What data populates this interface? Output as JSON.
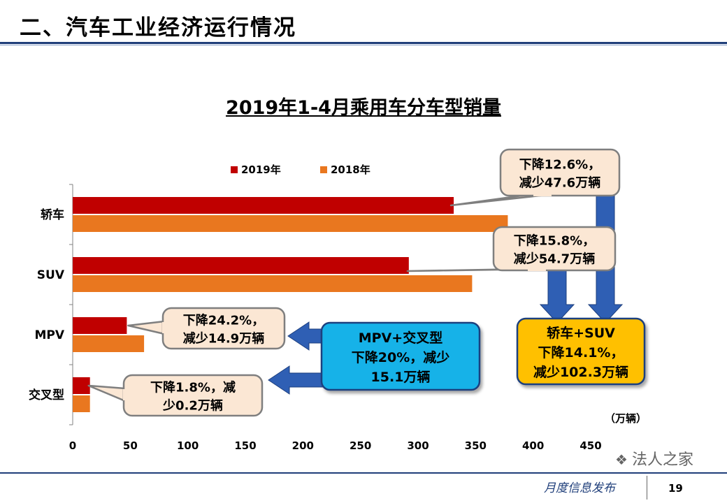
{
  "slide": {
    "title": "二、汽车工业经济运行情况",
    "footer": "月度信息发布",
    "page_number": "19",
    "watermark": "法人之家",
    "watermark_icon": "wechat-icon"
  },
  "colors": {
    "series_2019": "#c00000",
    "series_2018": "#e9771f",
    "callout_fill": "#fbe7d4",
    "callout_stroke": "#7f7f7f",
    "mpv_box_fill": "#12b2e8",
    "suv_box_fill": "#ffc000",
    "arrow_fill": "#2f5fb4"
  },
  "chart_data": {
    "type": "bar",
    "orientation": "horizontal",
    "title": "2019年1-4月乘用车分车型销量",
    "categories": [
      "轿车",
      "SUV",
      "MPV",
      "交叉型"
    ],
    "series": [
      {
        "name": "2019年",
        "values": [
          331,
          292,
          47,
          15
        ]
      },
      {
        "name": "2018年",
        "values": [
          378,
          347,
          62,
          15
        ]
      }
    ],
    "unit_label": "（万辆）",
    "xlim": [
      0,
      450
    ],
    "xticks": [
      0,
      50,
      100,
      150,
      200,
      250,
      300,
      350,
      400,
      450
    ],
    "grid": false,
    "legend_position": "top",
    "annotations": {
      "car": [
        "下降12.6%，",
        "减少47.6万辆"
      ],
      "suv": [
        "下降15.8%，",
        "减少54.7万辆"
      ],
      "mpv": [
        "下降24.2%，",
        "减少14.9万辆"
      ],
      "cross": [
        "下降1.8%，减",
        "少0.2万辆"
      ],
      "mpv_cross": [
        "MPV+交叉型",
        "下降20%，减少",
        "15.1万辆"
      ],
      "car_suv": [
        "轿车+SUV",
        "下降14.1%，",
        "减少102.3万辆"
      ]
    }
  }
}
